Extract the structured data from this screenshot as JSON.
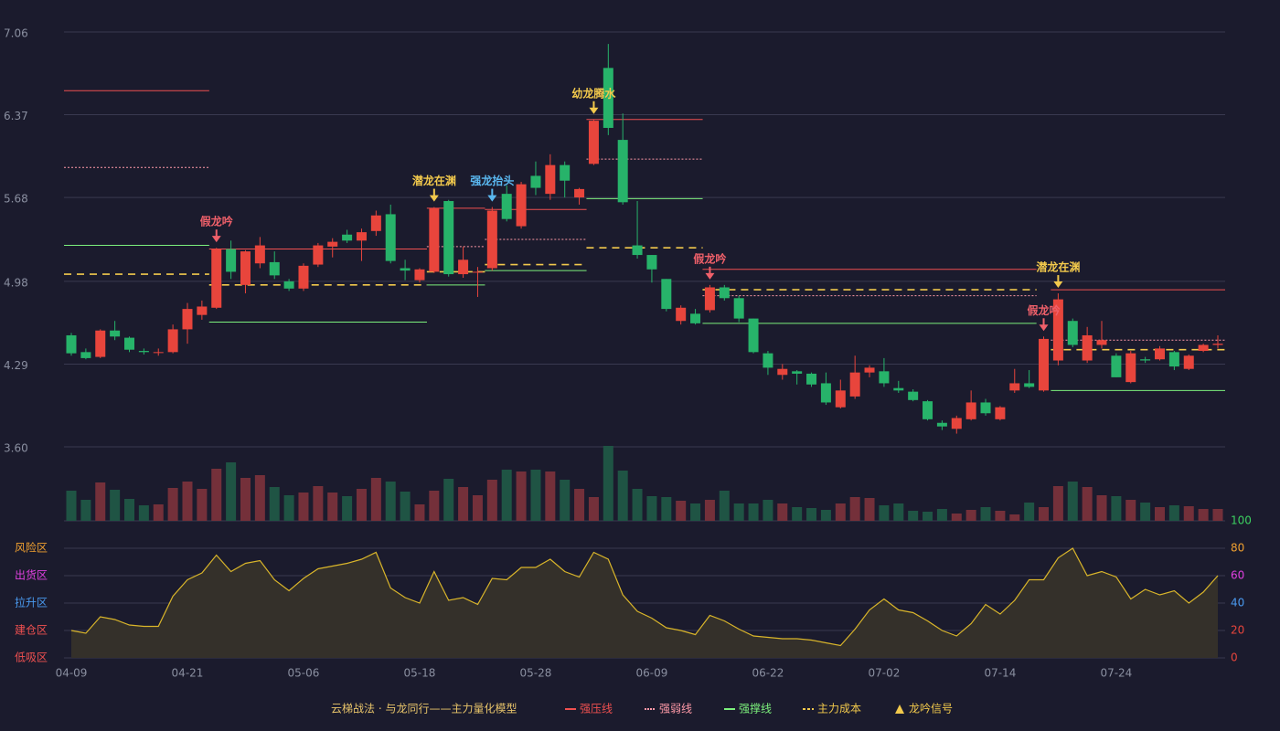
{
  "chart_data": {
    "type": "candlestick",
    "legend_title": "云梯战法 · 与龙同行——主力量化模型",
    "categories": [
      "04-09",
      null,
      null,
      null,
      null,
      null,
      null,
      null,
      "04-21",
      null,
      null,
      null,
      null,
      null,
      null,
      null,
      "05-06",
      null,
      null,
      null,
      null,
      null,
      null,
      null,
      "05-18",
      null,
      null,
      null,
      null,
      null,
      null,
      null,
      "05-28",
      null,
      null,
      null,
      null,
      null,
      null,
      null,
      "06-09",
      null,
      null,
      null,
      null,
      null,
      null,
      null,
      "06-22",
      null,
      null,
      null,
      null,
      null,
      null,
      null,
      "07-02",
      null,
      null,
      null,
      null,
      null,
      null,
      null,
      "07-14",
      null,
      null,
      null,
      null,
      null,
      null,
      null,
      "07-24",
      null,
      null,
      null,
      null,
      null,
      null,
      null
    ],
    "open": [
      4.53,
      4.39,
      4.35,
      4.57,
      4.51,
      4.4,
      4.39,
      4.39,
      4.58,
      4.7,
      4.76,
      5.25,
      4.95,
      5.13,
      5.14,
      4.98,
      4.92,
      5.12,
      5.27,
      5.37,
      5.32,
      5.4,
      5.54,
      5.09,
      4.99,
      5.06,
      5.65,
      5.04,
      5.06,
      5.09,
      5.71,
      5.44,
      5.86,
      5.71,
      5.95,
      5.68,
      5.96,
      6.76,
      6.16,
      5.28,
      5.2,
      5.0,
      4.65,
      4.71,
      4.74,
      4.93,
      4.84,
      4.67,
      4.38,
      4.2,
      4.23,
      4.21,
      4.13,
      3.93,
      4.02,
      4.22,
      4.23,
      4.09,
      4.06,
      3.98,
      3.8,
      3.75,
      3.83,
      3.97,
      3.83,
      4.07,
      4.13,
      4.07,
      4.32,
      4.65,
      4.32,
      4.45,
      4.36,
      4.14,
      4.33,
      4.33,
      4.39,
      4.25,
      4.4,
      4.45
    ],
    "high": [
      4.55,
      4.42,
      4.58,
      4.65,
      4.52,
      4.42,
      4.42,
      4.62,
      4.8,
      4.82,
      5.26,
      5.32,
      5.24,
      5.35,
      5.23,
      5.0,
      5.13,
      5.3,
      5.34,
      5.41,
      5.42,
      5.57,
      5.62,
      5.16,
      5.09,
      5.6,
      5.66,
      5.27,
      5.1,
      5.6,
      5.78,
      5.81,
      5.98,
      6.04,
      5.98,
      5.76,
      6.33,
      6.96,
      6.38,
      5.65,
      5.2,
      5.0,
      4.78,
      4.75,
      4.95,
      4.95,
      4.86,
      4.67,
      4.4,
      4.29,
      4.24,
      4.22,
      4.22,
      4.16,
      4.36,
      4.28,
      4.34,
      4.15,
      4.08,
      3.99,
      3.82,
      3.86,
      4.07,
      4.0,
      3.94,
      4.25,
      4.24,
      4.52,
      4.88,
      4.67,
      4.6,
      4.65,
      4.38,
      4.4,
      4.35,
      4.44,
      4.4,
      4.37,
      4.46,
      4.53
    ],
    "low": [
      4.36,
      4.33,
      4.34,
      4.49,
      4.39,
      4.37,
      4.36,
      4.38,
      4.46,
      4.66,
      4.75,
      5.0,
      4.88,
      5.09,
      5.0,
      4.9,
      4.9,
      5.1,
      5.18,
      5.3,
      5.15,
      5.36,
      5.13,
      4.99,
      4.97,
      5.05,
      5.02,
      5.01,
      4.85,
      5.07,
      5.48,
      5.42,
      5.7,
      5.66,
      5.68,
      5.62,
      5.95,
      6.2,
      5.62,
      5.17,
      4.97,
      4.73,
      4.62,
      4.62,
      4.72,
      4.82,
      4.64,
      4.38,
      4.2,
      4.16,
      4.12,
      4.1,
      3.95,
      3.92,
      4.0,
      4.18,
      4.1,
      4.05,
      3.98,
      3.82,
      3.74,
      3.71,
      3.82,
      3.86,
      3.82,
      4.05,
      4.09,
      4.06,
      4.28,
      4.43,
      4.3,
      4.42,
      4.18,
      4.13,
      4.3,
      4.32,
      4.24,
      4.24,
      4.39,
      4.42
    ],
    "close": [
      4.38,
      4.34,
      4.57,
      4.52,
      4.41,
      4.39,
      4.39,
      4.58,
      4.75,
      4.77,
      5.25,
      5.06,
      5.23,
      5.28,
      5.03,
      4.92,
      5.11,
      5.28,
      5.31,
      5.32,
      5.39,
      5.53,
      5.15,
      5.07,
      5.08,
      5.59,
      5.04,
      5.16,
      5.06,
      5.57,
      5.5,
      5.79,
      5.76,
      5.95,
      5.82,
      5.75,
      6.32,
      6.26,
      5.64,
      5.2,
      5.08,
      4.75,
      4.76,
      4.63,
      4.93,
      4.84,
      4.67,
      4.39,
      4.26,
      4.25,
      4.21,
      4.12,
      3.97,
      4.07,
      4.22,
      4.26,
      4.13,
      4.07,
      3.99,
      3.83,
      3.77,
      3.84,
      3.97,
      3.88,
      3.93,
      4.13,
      4.1,
      4.5,
      4.83,
      4.45,
      4.53,
      4.49,
      4.18,
      4.38,
      4.32,
      4.42,
      4.27,
      4.36,
      4.45,
      4.46
    ],
    "up_color": "#e8453c",
    "down_color": "#27b36a",
    "ylim": [
      3.6,
      7.06
    ],
    "yticks": [
      {
        "value": 3.6,
        "label": "3.60"
      },
      4.29,
      4.98,
      5.68,
      6.37,
      7.06
    ],
    "grid": true,
    "volume": {
      "values": [
        33,
        23,
        42,
        34,
        24,
        17,
        18,
        36,
        43,
        35,
        57,
        64,
        47,
        50,
        37,
        28,
        31,
        38,
        31,
        27,
        35,
        47,
        43,
        32,
        18,
        33,
        46,
        37,
        28,
        45,
        56,
        54,
        56,
        54,
        45,
        35,
        26,
        82,
        55,
        35,
        27,
        26,
        22,
        19,
        23,
        33,
        19,
        19,
        23,
        19,
        15,
        14,
        12,
        19,
        26,
        25,
        17,
        19,
        11,
        10,
        13,
        8,
        12,
        15,
        11,
        7,
        20,
        15,
        38,
        43,
        37,
        28,
        27,
        23,
        20,
        15,
        17,
        16,
        13,
        13
      ],
      "up_color": "#74303a",
      "down_color": "#1f5444"
    },
    "oscillator": {
      "values": [
        20,
        18,
        30,
        28,
        24,
        23,
        23,
        45,
        57,
        62,
        75,
        63,
        69,
        71,
        57,
        49,
        58,
        65,
        67,
        69,
        72,
        77,
        51,
        44,
        40,
        63,
        42,
        44,
        39,
        58,
        57,
        66,
        66,
        72,
        63,
        59,
        77,
        72,
        46,
        34,
        29,
        22,
        20,
        17,
        31,
        27,
        21,
        16,
        15,
        14,
        14,
        13,
        11,
        9,
        21,
        35,
        43,
        35,
        33,
        27,
        20,
        16,
        25,
        39,
        32,
        42,
        57,
        57,
        73,
        80,
        60,
        63,
        59,
        43,
        50,
        46,
        49,
        40,
        48,
        60
      ],
      "color": "#d9b52a",
      "fill": "#34302a",
      "ylim": [
        0,
        100
      ],
      "yticks": [
        0,
        20,
        40,
        60,
        80,
        100
      ],
      "ytick_colors": [
        "#e8453c",
        "#e8453c",
        "#4a9af0",
        "#e040e0",
        "#f0a030",
        "#3cd060"
      ],
      "zones": [
        {
          "label": "风险区",
          "value": 80,
          "color": "#f0a030"
        },
        {
          "label": "出货区",
          "value": 60,
          "color": "#e040e0"
        },
        {
          "label": "拉升区",
          "value": 40,
          "color": "#4a9af0"
        },
        {
          "label": "建仓区",
          "value": 20,
          "color": "#f05050"
        },
        {
          "label": "低吸区",
          "value": 0,
          "color": "#f05050"
        }
      ]
    },
    "lines": [
      {
        "name": "强压线",
        "color": "#f05050",
        "style": "solid",
        "segments": [
          {
            "start": 0,
            "end": 9,
            "value": 6.57
          },
          {
            "start": 10,
            "end": 24,
            "value": 5.25
          },
          {
            "start": 25,
            "end": 28,
            "value": 5.59
          },
          {
            "start": 29,
            "end": 35,
            "value": 5.58
          },
          {
            "start": 36,
            "end": 43,
            "value": 6.33
          },
          {
            "start": 44,
            "end": 66,
            "value": 5.08
          },
          {
            "start": 68,
            "end": 79,
            "value": 4.91
          }
        ]
      },
      {
        "name": "强弱线",
        "color": "#ff9aa8",
        "style": "dotted",
        "segments": [
          {
            "start": 0,
            "end": 9,
            "value": 5.93
          },
          {
            "start": 25,
            "end": 28,
            "value": 5.27
          },
          {
            "start": 29,
            "end": 35,
            "value": 5.33
          },
          {
            "start": 36,
            "end": 43,
            "value": 6.0
          },
          {
            "start": 44,
            "end": 66,
            "value": 4.86
          },
          {
            "start": 68,
            "end": 79,
            "value": 4.49
          }
        ]
      },
      {
        "name": "强撑线",
        "color": "#7cf07c",
        "style": "solid",
        "segments": [
          {
            "start": 0,
            "end": 9,
            "value": 5.28
          },
          {
            "start": 10,
            "end": 24,
            "value": 4.64
          },
          {
            "start": 25,
            "end": 28,
            "value": 4.95
          },
          {
            "start": 29,
            "end": 35,
            "value": 5.07
          },
          {
            "start": 36,
            "end": 43,
            "value": 5.67
          },
          {
            "start": 44,
            "end": 66,
            "value": 4.63
          },
          {
            "start": 68,
            "end": 79,
            "value": 4.07
          }
        ]
      },
      {
        "name": "主力成本",
        "color": "#f2c94c",
        "style": "dashed",
        "segments": [
          {
            "start": 0,
            "end": 9,
            "value": 5.04
          },
          {
            "start": 10,
            "end": 24,
            "value": 4.95
          },
          {
            "start": 25,
            "end": 28,
            "value": 5.06
          },
          {
            "start": 29,
            "end": 35,
            "value": 5.12
          },
          {
            "start": 36,
            "end": 43,
            "value": 5.26
          },
          {
            "start": 44,
            "end": 66,
            "value": 4.91
          },
          {
            "start": 68,
            "end": 79,
            "value": 4.41
          }
        ]
      }
    ],
    "signals": {
      "name": "龙吟信号",
      "color": "#f2c94c",
      "items": [
        {
          "index": 10,
          "label": "假龙吟",
          "color": "#f0606a"
        },
        {
          "index": 25,
          "label": "潜龙在渊",
          "color": "#f2c94c"
        },
        {
          "index": 29,
          "label": "强龙抬头",
          "color": "#5ab8f0"
        },
        {
          "index": 36,
          "label": "幼龙腾水",
          "color": "#f2c94c"
        },
        {
          "index": 44,
          "label": "假龙吟",
          "color": "#f0606a"
        },
        {
          "index": 67,
          "label": "假龙吟",
          "color": "#f0606a"
        },
        {
          "index": 68,
          "label": "潜龙在渊",
          "color": "#f2c94c"
        }
      ]
    }
  }
}
